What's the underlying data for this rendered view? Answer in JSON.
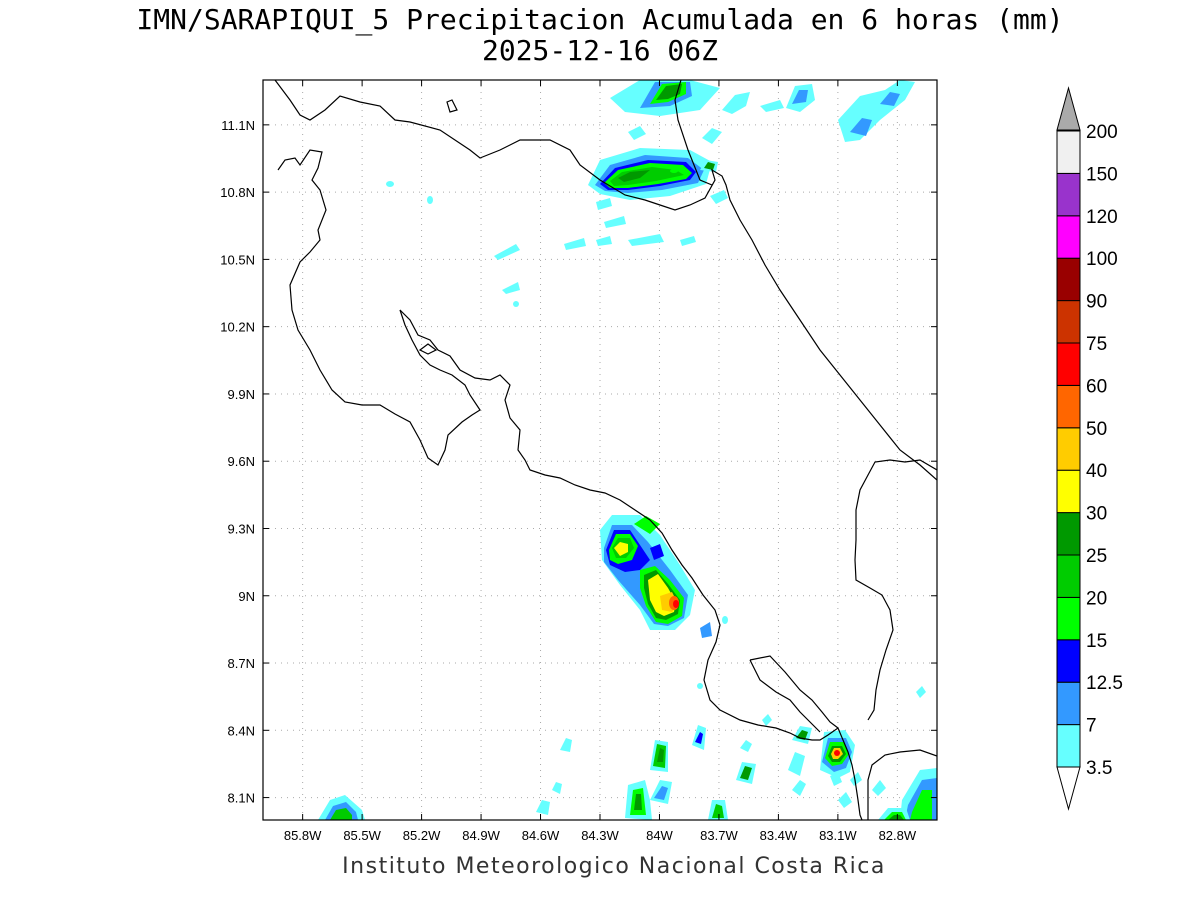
{
  "title": {
    "line1": "IMN/SARAPIQUI_5 Precipitacion Acumulada en 6 horas (mm)",
    "line2": "2025-12-16 06Z"
  },
  "footer": "Instituto Meteorologico Nacional Costa Rica",
  "map": {
    "lon_range": [
      -86.0,
      -82.6
    ],
    "lat_range": [
      8.0,
      11.3
    ],
    "x_ticks": [
      "85.8W",
      "85.5W",
      "85.2W",
      "84.9W",
      "84.6W",
      "84.3W",
      "84W",
      "83.7W",
      "83.4W",
      "83.1W",
      "82.8W"
    ],
    "y_ticks": [
      "11.1N",
      "10.8N",
      "10.5N",
      "10.2N",
      "9.9N",
      "9.6N",
      "9.3N",
      "9N",
      "8.7N",
      "8.4N",
      "8.1N"
    ],
    "grid": true
  },
  "colorbar": {
    "labels": [
      "3.5",
      "7",
      "12.5",
      "15",
      "20",
      "25",
      "30",
      "40",
      "50",
      "60",
      "75",
      "90",
      "100",
      "120",
      "150",
      "200"
    ],
    "colors": [
      "#ffffff",
      "#66ffff",
      "#3399ff",
      "#0000ff",
      "#00ff00",
      "#00cc00",
      "#009900",
      "#ffff00",
      "#ffcc00",
      "#ff6600",
      "#ff0000",
      "#cc3300",
      "#990000",
      "#ff00ff",
      "#9933cc",
      "#f0f0f0"
    ]
  }
}
